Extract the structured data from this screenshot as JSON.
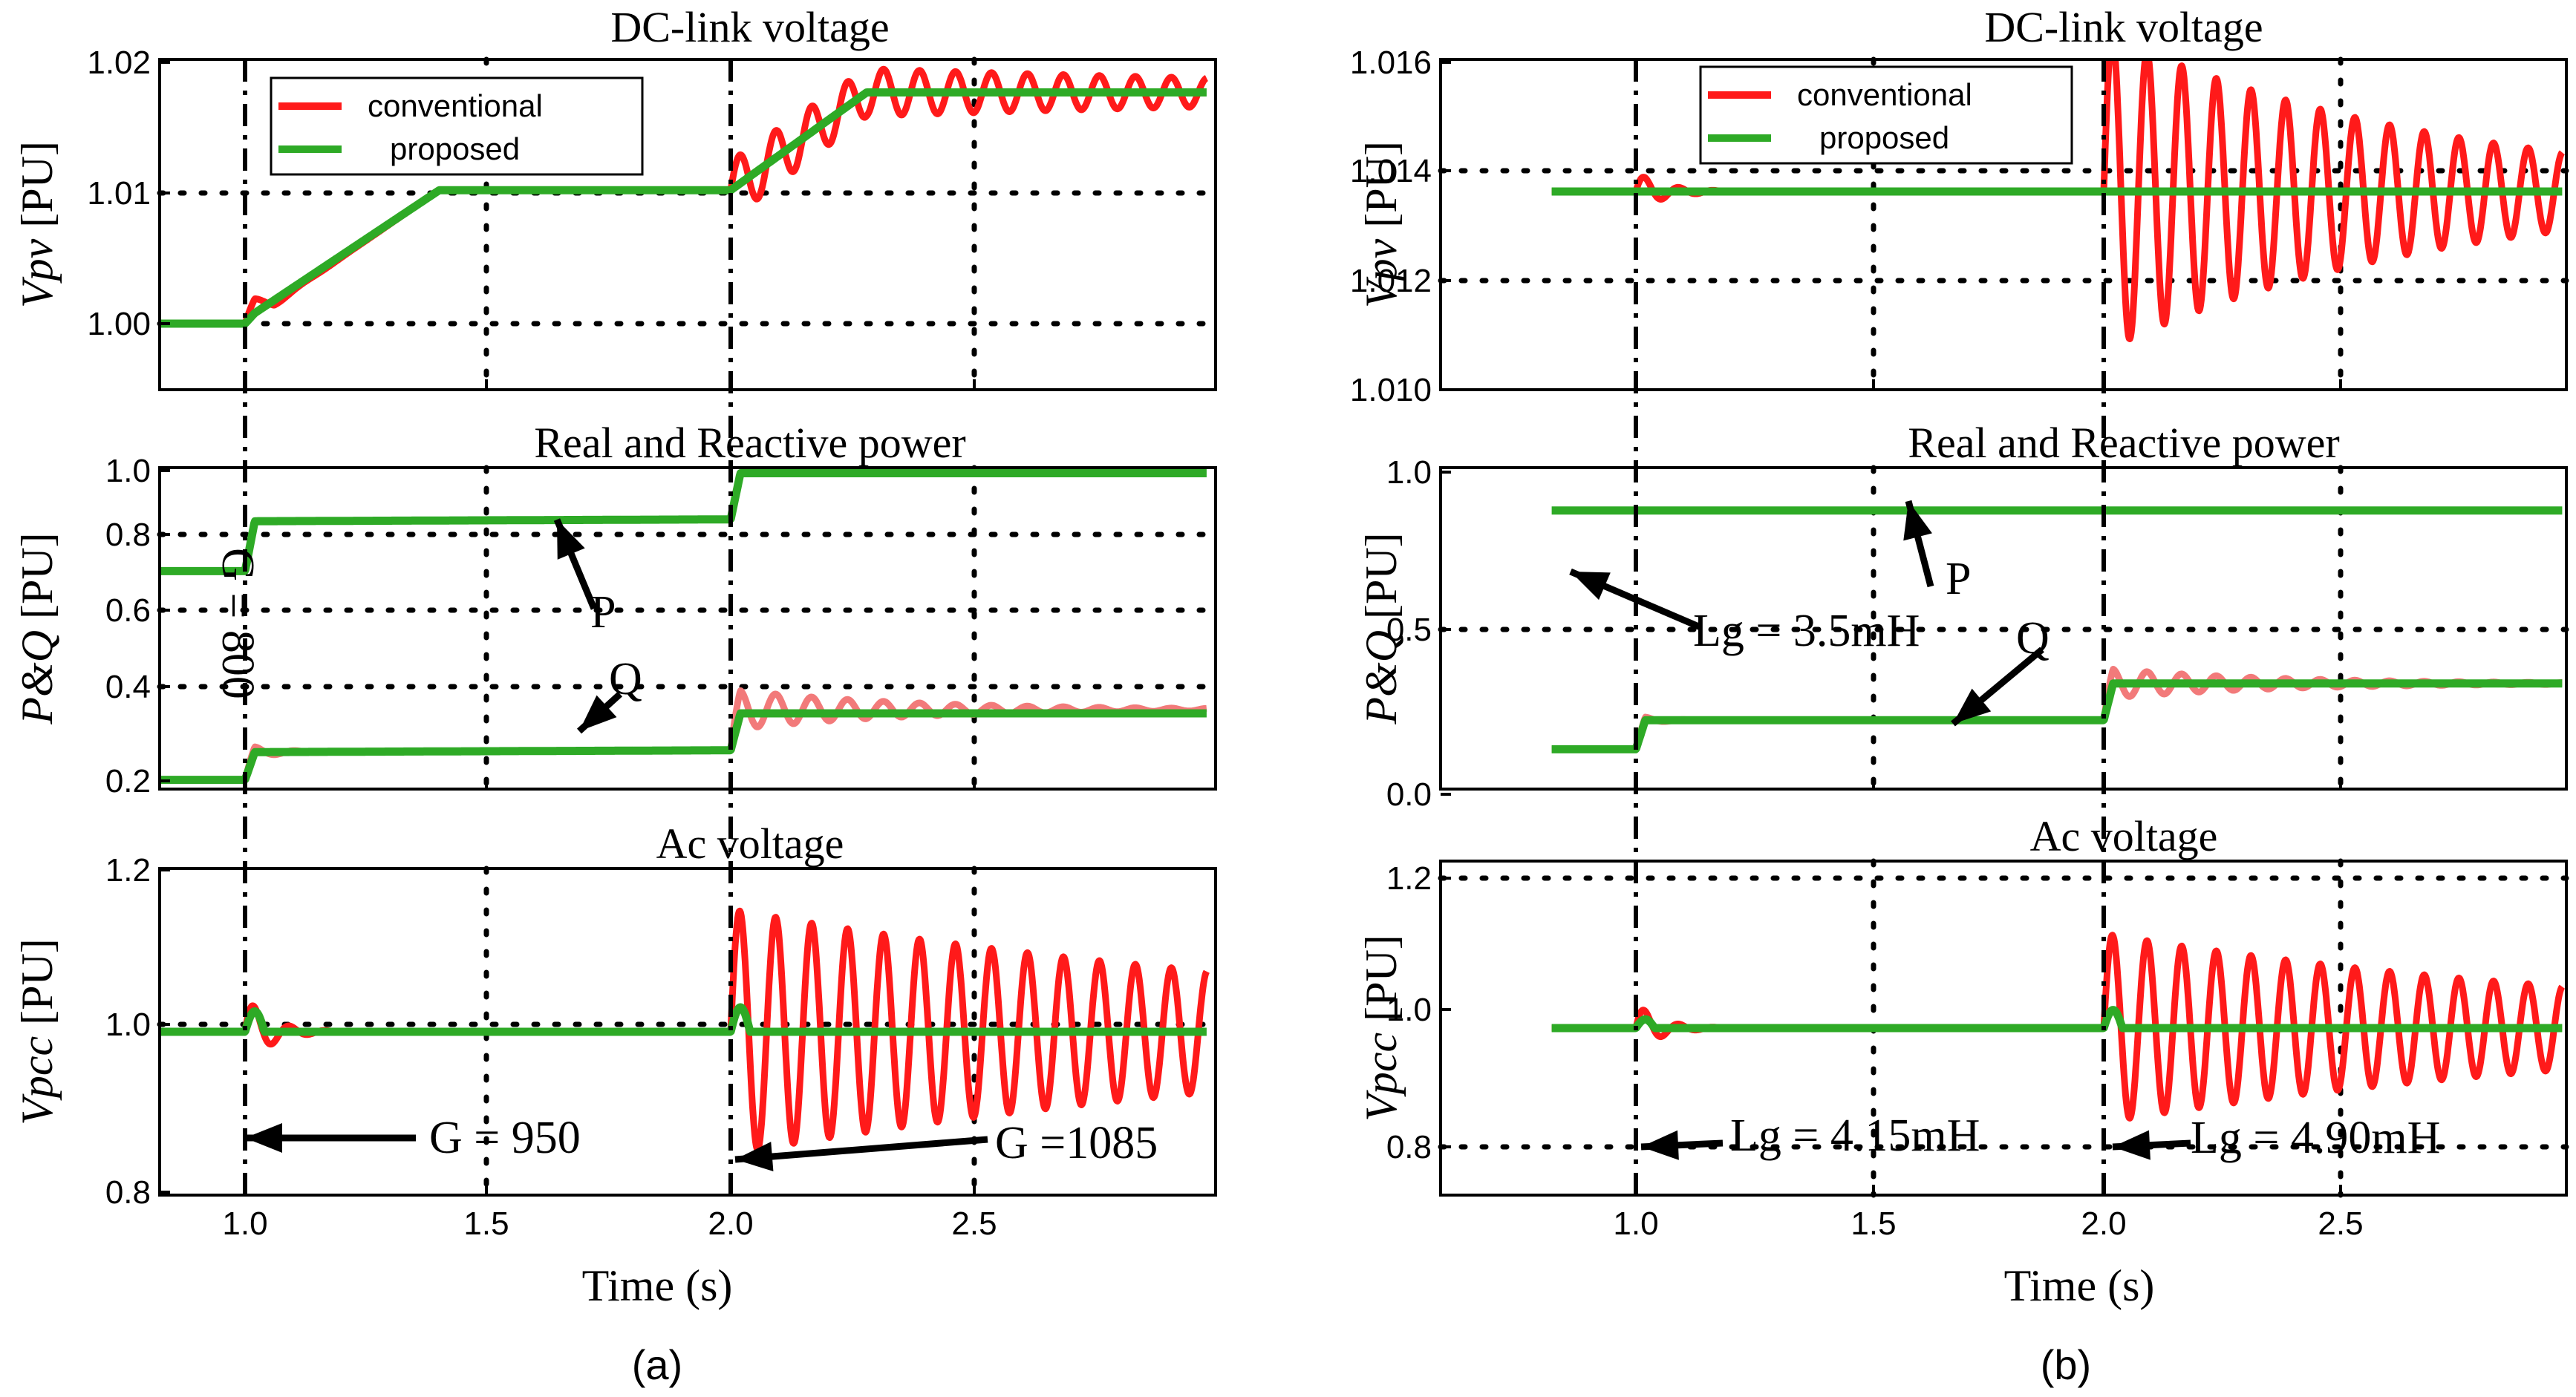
{
  "chart_data": [
    {
      "panel": "(a)",
      "type": "line",
      "xlabel": "Time (s)",
      "xlim": [
        0.82,
        2.98
      ],
      "xticks": [
        "1.0",
        "1.5",
        "2.0",
        "2.5"
      ],
      "event_times": [
        1.0,
        2.0
      ],
      "legend": {
        "placement": "top-left",
        "entries": [
          "conventional",
          "proposed"
        ]
      },
      "colors": {
        "conventional": "#ff1a1a",
        "conventional_light": "#f27a7a",
        "proposed": "#2eaa26"
      },
      "subplots": [
        {
          "title": "DC-link voltage",
          "ylabel_var": "Vpv",
          "ylabel_unit": "[PU]",
          "ylim": [
            0.995,
            1.02
          ],
          "yticks": [
            "1.00",
            "1.01",
            "1.02"
          ],
          "grid": true,
          "series": [
            {
              "name": "conventional",
              "x": [
                0.82,
                1.0,
                1.02,
                1.06,
                1.4,
                2.0,
                2.28,
                2.98
              ],
              "y": [
                1.0,
                1.0,
                1.0015,
                1.0015,
                1.0101,
                1.0101,
                1.0175,
                1.0175
              ],
              "oscillation": [
                {
                  "t0": 1.0,
                  "amp": 0.0006,
                  "freq": 10,
                  "tau": 0.05
                },
                {
                  "t0": 2.0,
                  "amp": 0.0022,
                  "freq": 13.5,
                  "tau": 1.4
                }
              ]
            },
            {
              "name": "proposed",
              "x": [
                0.82,
                1.0,
                1.02,
                1.4,
                2.0,
                2.28,
                2.98
              ],
              "y": [
                1.0,
                1.0,
                1.0008,
                1.0101,
                1.0101,
                1.0175,
                1.0175
              ]
            }
          ]
        },
        {
          "title": "Real and Reactive power",
          "ylabel_var": "P&Q",
          "ylabel_unit": "[PU]",
          "ylim": [
            0.13,
            1.0
          ],
          "yticks": [
            "0.2",
            "0.4",
            "0.6",
            "0.8",
            "1.0"
          ],
          "grid": true,
          "annotations": [
            "P",
            "Q",
            "G = 800"
          ],
          "series": [
            {
              "name": "P",
              "x": [
                0.82,
                1.0,
                1.02,
                2.0,
                2.02,
                2.98
              ],
              "y": [
                0.72,
                0.72,
                0.855,
                0.86,
                0.985,
                0.985
              ]
            },
            {
              "name": "Q conventional",
              "x": [
                0.82,
                1.0,
                1.02,
                2.0,
                2.02,
                2.98
              ],
              "y": [
                0.155,
                0.155,
                0.23,
                0.235,
                0.345,
                0.345
              ],
              "oscillation": [
                {
                  "t0": 1.0,
                  "amp": 0.02,
                  "freq": 12,
                  "tau": 0.06
                },
                {
                  "t0": 2.0,
                  "amp": 0.055,
                  "freq": 13.5,
                  "tau": 0.35
                }
              ]
            },
            {
              "name": "Q proposed",
              "x": [
                0.82,
                1.0,
                1.02,
                2.0,
                2.02,
                2.98
              ],
              "y": [
                0.155,
                0.155,
                0.23,
                0.235,
                0.335,
                0.335
              ]
            }
          ]
        },
        {
          "title": "Ac  voltage",
          "ylabel_var": "Vpcc",
          "ylabel_unit": "[PU]",
          "ylim": [
            0.8,
            1.2
          ],
          "yticks": [
            "0.8",
            "1.0",
            "1.2"
          ],
          "grid": true,
          "annotations": [
            "G = 950",
            "G =1085"
          ],
          "series": [
            {
              "name": "conventional",
              "x": [
                0.82,
                2.98
              ],
              "y": [
                1.0,
                1.0
              ],
              "oscillation": [
                {
                  "t0": 1.0,
                  "amp": 0.045,
                  "freq": 13.5,
                  "tau": 0.05
                },
                {
                  "t0": 2.0,
                  "amp": 0.15,
                  "freq": 13.5,
                  "tau": 1.4
                }
              ]
            },
            {
              "name": "proposed",
              "x": [
                0.82,
                2.98
              ],
              "y": [
                1.0,
                1.0
              ],
              "blip": [
                {
                  "t0": 1.0,
                  "amp": 0.025
                },
                {
                  "t0": 2.0,
                  "amp": 0.03
                }
              ]
            }
          ]
        }
      ]
    },
    {
      "panel": "(b)",
      "type": "line",
      "xlabel": "Time (s)",
      "xlim": [
        0.82,
        2.98
      ],
      "xticks": [
        "1.0",
        "1.5",
        "2.0",
        "2.5"
      ],
      "event_times": [
        1.0,
        2.0
      ],
      "legend": {
        "placement": "top-left",
        "entries": [
          "conventional",
          "proposed"
        ]
      },
      "colors": {
        "conventional": "#ff1a1a",
        "conventional_light": "#f27a7a",
        "proposed": "#2eaa26"
      },
      "subplots": [
        {
          "title": "DC-link voltage",
          "ylabel_var": "Vpv",
          "ylabel_unit": "[PU]",
          "ylim": [
            1.01,
            1.016
          ],
          "yticks": [
            "1.010",
            "1.012",
            "1.014",
            "1.016"
          ],
          "grid": true,
          "series": [
            {
              "name": "conventional",
              "x": [
                0.82,
                2.98
              ],
              "y": [
                1.0136,
                1.0136
              ],
              "oscillation": [
                {
                  "t0": 1.0,
                  "amp": 0.00035,
                  "freq": 13.5,
                  "tau": 0.06
                },
                {
                  "t0": 2.0,
                  "amp": 0.0029,
                  "freq": 13.5,
                  "tau": 0.7
                }
              ]
            },
            {
              "name": "proposed",
              "x": [
                0.82,
                2.98
              ],
              "y": [
                1.0136,
                1.0136
              ]
            }
          ]
        },
        {
          "title": "Real and Reactive power",
          "ylabel_var": "P&Q",
          "ylabel_unit": "[PU]",
          "ylim": [
            0.0,
            1.05
          ],
          "yticks": [
            "0.0",
            "0.5",
            "1.0"
          ],
          "grid": true,
          "annotations": [
            "P",
            "Q",
            "Lg = 3.5mH"
          ],
          "series": [
            {
              "name": "P",
              "x": [
                0.82,
                2.98
              ],
              "y": [
                0.91,
                0.91
              ]
            },
            {
              "name": "Q conventional",
              "x": [
                0.82,
                1.0,
                1.02,
                2.0,
                2.02,
                2.98
              ],
              "y": [
                0.13,
                0.13,
                0.225,
                0.225,
                0.345,
                0.345
              ],
              "oscillation": [
                {
                  "t0": 1.0,
                  "amp": 0.015,
                  "freq": 12,
                  "tau": 0.05
                },
                {
                  "t0": 2.0,
                  "amp": 0.05,
                  "freq": 13.5,
                  "tau": 0.35
                }
              ]
            },
            {
              "name": "Q proposed",
              "x": [
                0.82,
                1.0,
                1.02,
                2.0,
                2.02,
                2.98
              ],
              "y": [
                0.13,
                0.13,
                0.225,
                0.225,
                0.345,
                0.345
              ]
            }
          ]
        },
        {
          "title": "Ac  voltage",
          "ylabel_var": "Vpcc",
          "ylabel_unit": "[PU]",
          "ylim": [
            0.77,
            1.23
          ],
          "yticks": [
            "0.8",
            "1.0",
            "1.2"
          ],
          "grid": true,
          "annotations": [
            "Lg = 4.15mH",
            "Lg = 4.90mH"
          ],
          "series": [
            {
              "name": "conventional",
              "x": [
                0.82,
                2.98
              ],
              "y": [
                1.0,
                1.0
              ],
              "oscillation": [
                {
                  "t0": 1.0,
                  "amp": 0.035,
                  "freq": 13.5,
                  "tau": 0.05
                },
                {
                  "t0": 2.0,
                  "amp": 0.13,
                  "freq": 13.5,
                  "tau": 1.2
                }
              ]
            },
            {
              "name": "proposed",
              "x": [
                0.82,
                2.98
              ],
              "y": [
                1.0,
                1.0
              ],
              "blip": [
                {
                  "t0": 1.0,
                  "amp": 0.012
                },
                {
                  "t0": 2.0,
                  "amp": 0.025
                }
              ]
            }
          ]
        }
      ]
    }
  ]
}
